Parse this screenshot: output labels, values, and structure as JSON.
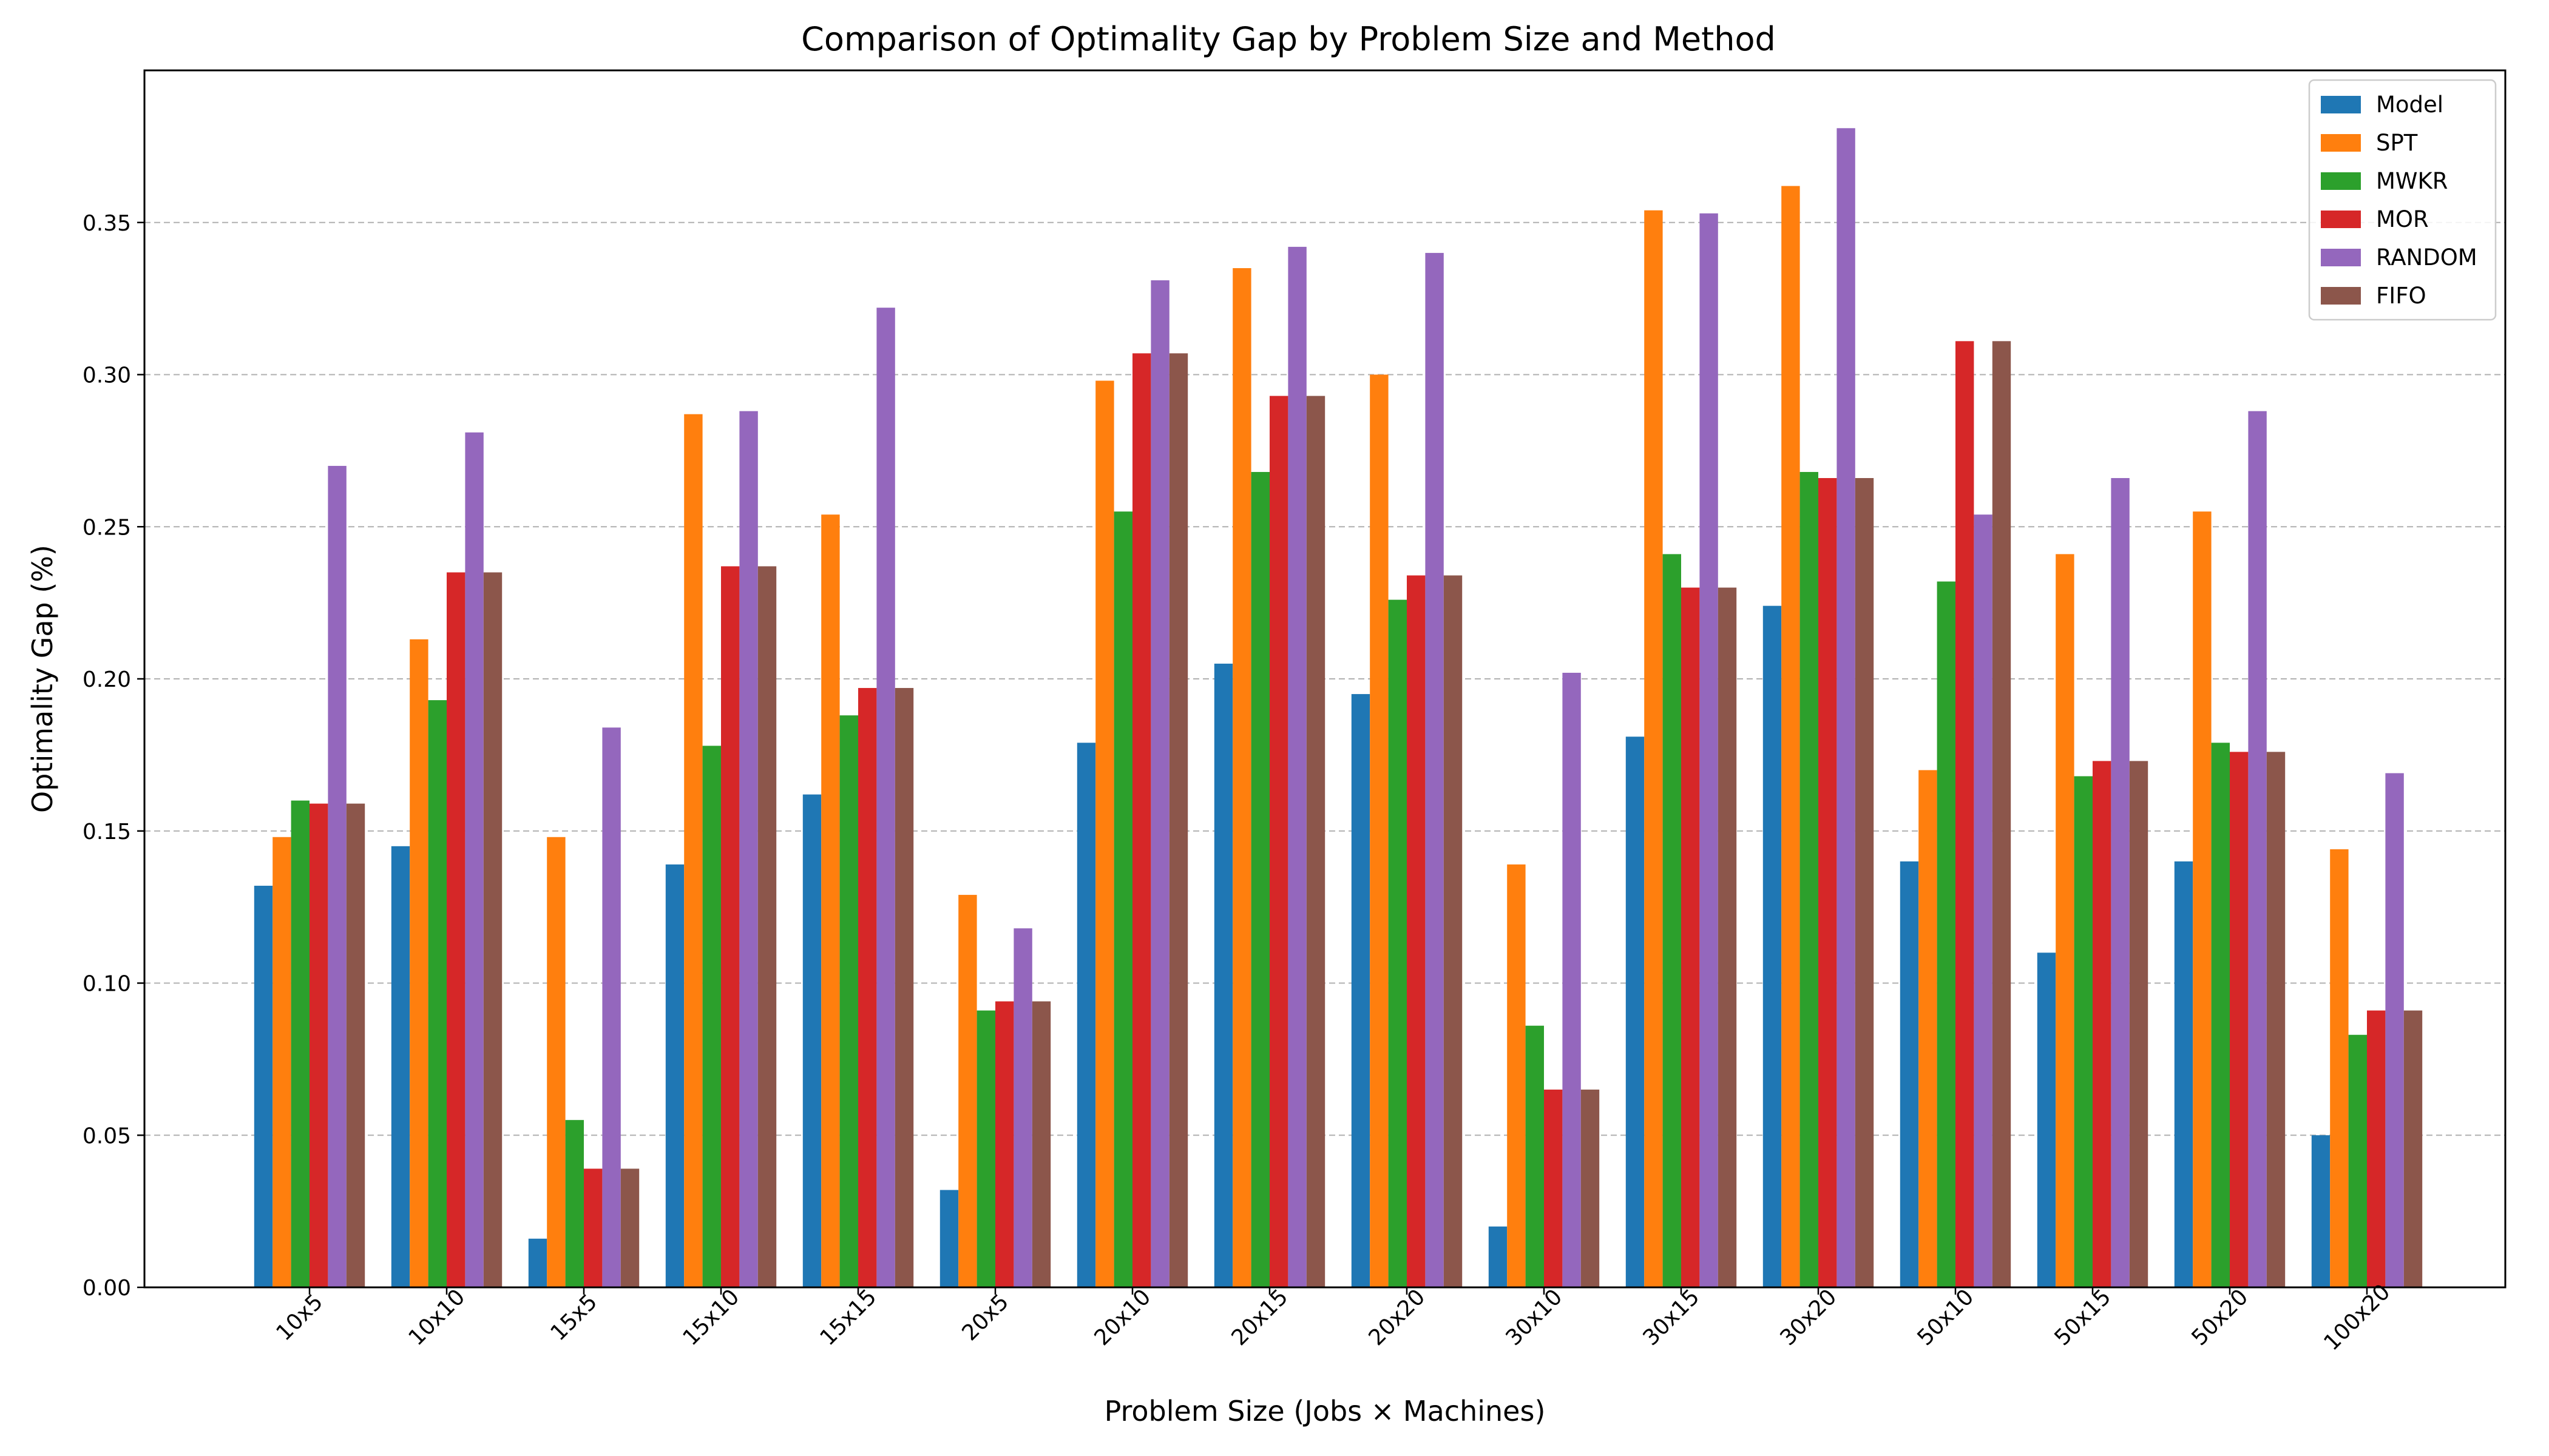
{
  "chart_data": {
    "type": "bar",
    "title": "Comparison of Optimality Gap by Problem Size and Method",
    "xlabel": "Problem Size (Jobs × Machines)",
    "ylabel": "Optimality Gap (%)",
    "ylim": [
      0,
      0.4
    ],
    "yticks": [
      "0.00",
      "0.05",
      "0.10",
      "0.15",
      "0.20",
      "0.25",
      "0.30",
      "0.35"
    ],
    "grid": "horizontal dashed",
    "legend_position": "top-right",
    "categories": [
      "10x5",
      "10x10",
      "15x5",
      "15x10",
      "15x15",
      "20x5",
      "20x10",
      "20x15",
      "20x20",
      "30x10",
      "30x15",
      "30x20",
      "50x10",
      "50x15",
      "50x20",
      "100x20"
    ],
    "series": [
      {
        "name": "Model",
        "color": "#1f77b4",
        "values": [
          0.132,
          0.145,
          0.016,
          0.139,
          0.162,
          0.032,
          0.179,
          0.205,
          0.195,
          0.02,
          0.181,
          0.224,
          0.14,
          0.11,
          0.14,
          0.05
        ]
      },
      {
        "name": "SPT",
        "color": "#ff7f0e",
        "values": [
          0.148,
          0.213,
          0.148,
          0.287,
          0.254,
          0.129,
          0.298,
          0.335,
          0.3,
          0.139,
          0.354,
          0.362,
          0.17,
          0.241,
          0.255,
          0.144
        ]
      },
      {
        "name": "MWKR",
        "color": "#2ca02c",
        "values": [
          0.16,
          0.193,
          0.055,
          0.178,
          0.188,
          0.091,
          0.255,
          0.268,
          0.226,
          0.086,
          0.241,
          0.268,
          0.232,
          0.168,
          0.179,
          0.083
        ]
      },
      {
        "name": "MOR",
        "color": "#d62728",
        "values": [
          0.159,
          0.235,
          0.039,
          0.237,
          0.197,
          0.094,
          0.307,
          0.293,
          0.234,
          0.065,
          0.23,
          0.266,
          0.311,
          0.173,
          0.176,
          0.091
        ]
      },
      {
        "name": "RANDOM",
        "color": "#9467bd",
        "values": [
          0.27,
          0.281,
          0.184,
          0.288,
          0.322,
          0.118,
          0.331,
          0.342,
          0.34,
          0.202,
          0.353,
          0.381,
          0.254,
          0.266,
          0.288,
          0.169
        ]
      },
      {
        "name": "FIFO",
        "color": "#8c564b",
        "values": [
          0.159,
          0.235,
          0.039,
          0.237,
          0.197,
          0.094,
          0.307,
          0.293,
          0.234,
          0.065,
          0.23,
          0.266,
          0.311,
          0.173,
          0.176,
          0.091
        ]
      }
    ]
  }
}
